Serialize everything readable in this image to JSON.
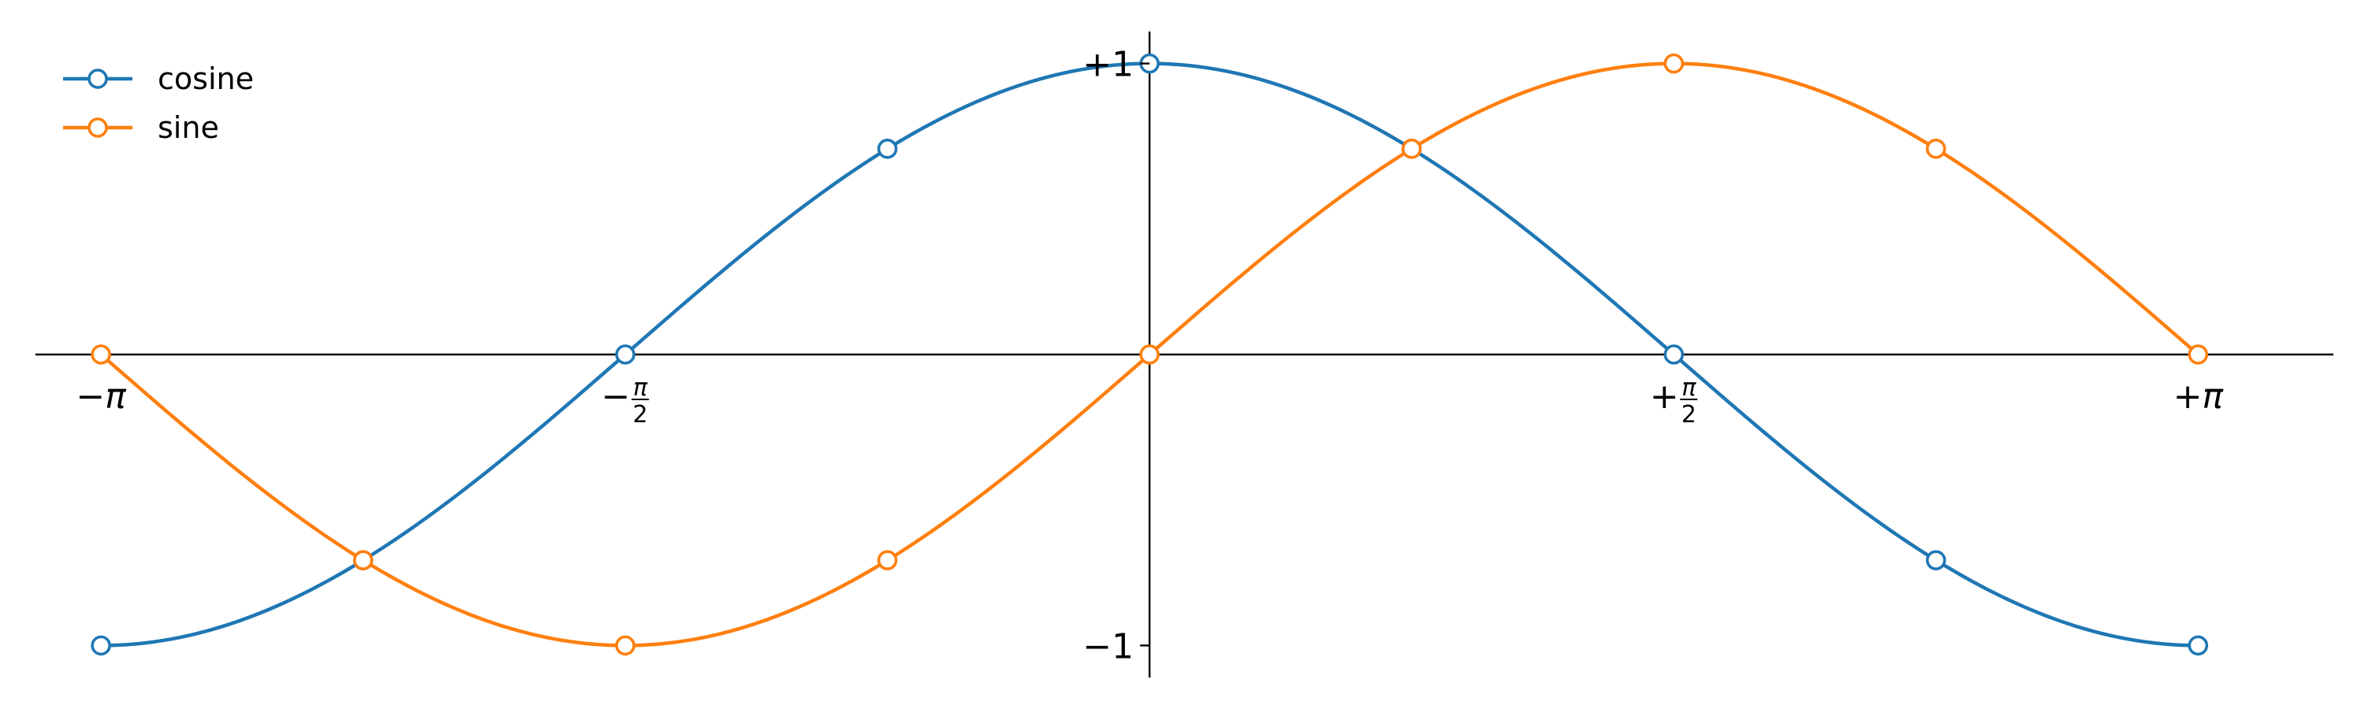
{
  "chart_data": {
    "type": "line",
    "title": "",
    "xlabel": "",
    "ylabel": "",
    "xlim": [
      -3.3379,
      3.5472
    ],
    "ylim": [
      -1.11,
      1.11
    ],
    "x": [
      -3.14159,
      -2.35619,
      -1.5708,
      -0.7854,
      0,
      0.7854,
      1.5708,
      2.35619,
      3.14159
    ],
    "series": [
      {
        "name": "cosine",
        "color": "#1f77b4",
        "values": [
          -1,
          -0.7071,
          0,
          0.7071,
          1,
          0.7071,
          0,
          -0.7071,
          -1
        ]
      },
      {
        "name": "sine",
        "color": "#ff7f0e",
        "values": [
          0,
          -0.7071,
          -1,
          -0.7071,
          0,
          0.7071,
          1,
          0.7071,
          0
        ]
      }
    ],
    "x_ticks": [
      {
        "value": -3.14159,
        "sign": "−",
        "sym": "π",
        "frac": false
      },
      {
        "value": -1.5708,
        "sign": "−",
        "sym": "π",
        "den": "2",
        "frac": true
      },
      {
        "value": 1.5708,
        "sign": "+",
        "sym": "π",
        "den": "2",
        "frac": true
      },
      {
        "value": 3.14159,
        "sign": "+",
        "sym": "π",
        "frac": false
      }
    ],
    "y_ticks": [
      {
        "value": -1,
        "label": "−1"
      },
      {
        "value": 1,
        "label": "+1"
      }
    ],
    "legend_position": "top-left",
    "grid": false,
    "spines": "centered"
  }
}
